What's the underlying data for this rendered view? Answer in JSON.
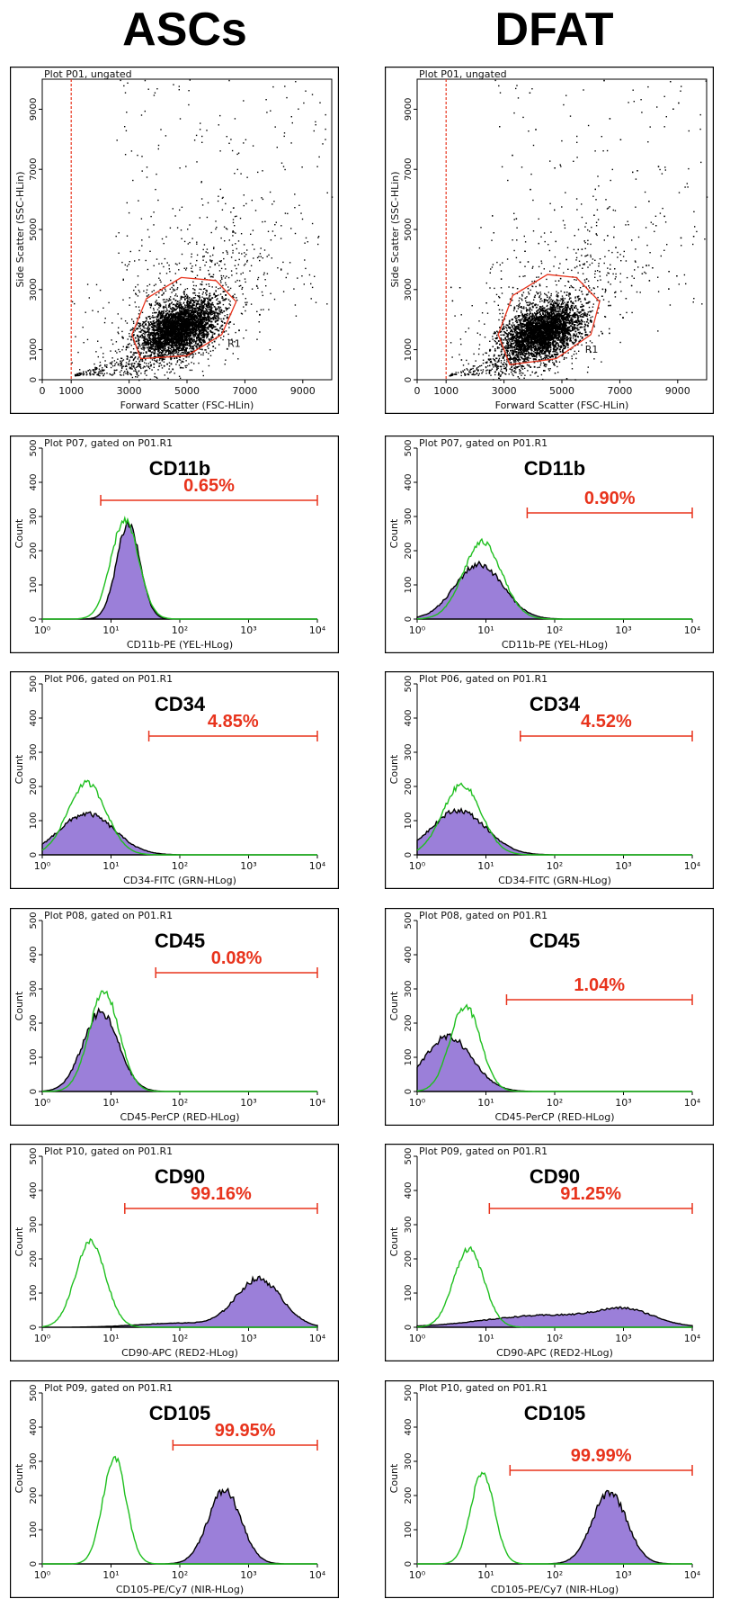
{
  "columns": [
    "ASCs",
    "DFAT"
  ],
  "colors": {
    "gate": "#e8331c",
    "sample_fill": "#9b7fd9",
    "sample_line": "#000000",
    "control_line": "#1fbf1f",
    "dots": "#000000"
  },
  "scatter": [
    {
      "plot_label": "Plot P01, ungated",
      "xlabel": "Forward Scatter (FSC-HLin)",
      "ylabel": "Side Scatter (SSC-HLin)",
      "gate_label": "R1",
      "x_ticks": [
        "0",
        "1000",
        "3000",
        "5000",
        "7000",
        "9000"
      ],
      "y_ticks": [
        "0",
        "1000",
        "3000",
        "5000",
        "7000",
        "9000"
      ]
    },
    {
      "plot_label": "Plot P01, ungated",
      "xlabel": "Forward Scatter (FSC-HLin)",
      "ylabel": "Side Scatter (SSC-HLin)",
      "gate_label": "R1",
      "x_ticks": [
        "0",
        "1000",
        "3000",
        "5000",
        "7000",
        "9000"
      ],
      "y_ticks": [
        "0",
        "1000",
        "3000",
        "5000",
        "7000",
        "9000"
      ]
    }
  ],
  "chart_data": {
    "type": "histogram",
    "x_ticks": [
      "10⁰",
      "10¹",
      "10²",
      "10³",
      "10⁴"
    ],
    "y_ticks": [
      "0",
      "100",
      "200",
      "300",
      "400",
      "500"
    ],
    "ylabel": "Count",
    "rows": [
      {
        "marker": "CD11b",
        "panels": [
          {
            "plot_label": "Plot P07, gated on P01.R1",
            "xlabel": "CD11b-PE (YEL-HLog)",
            "percent": "0.65%",
            "gate": [
              0.85,
              4
            ],
            "sample": [
              {
                "mu": 1.25,
                "sigma": 0.17,
                "peak": 280
              }
            ],
            "control": [
              {
                "mu": 1.2,
                "sigma": 0.2,
                "peak": 290
              }
            ]
          },
          {
            "plot_label": "Plot P07, gated on P01.R1",
            "xlabel": "CD11b-PE (YEL-HLog)",
            "percent": "0.90%",
            "gate": [
              1.6,
              4
            ],
            "sample": [
              {
                "mu": 0.9,
                "sigma": 0.35,
                "peak": 160
              }
            ],
            "control": [
              {
                "mu": 0.95,
                "sigma": 0.28,
                "peak": 225
              }
            ]
          }
        ]
      },
      {
        "marker": "CD34",
        "panels": [
          {
            "plot_label": "Plot P06, gated on P01.R1",
            "xlabel": "CD34-FITC (GRN-HLog)",
            "percent": "4.85%",
            "gate": [
              1.55,
              4
            ],
            "sample": [
              {
                "mu": 0.65,
                "sigma": 0.4,
                "peak": 120
              }
            ],
            "control": [
              {
                "mu": 0.65,
                "sigma": 0.28,
                "peak": 210
              }
            ]
          },
          {
            "plot_label": "Plot P06, gated on P01.R1",
            "xlabel": "CD34-FITC (GRN-HLog)",
            "percent": "4.52%",
            "gate": [
              1.5,
              4
            ],
            "sample": [
              {
                "mu": 0.6,
                "sigma": 0.4,
                "peak": 130
              }
            ],
            "control": [
              {
                "mu": 0.65,
                "sigma": 0.28,
                "peak": 205
              }
            ]
          }
        ]
      },
      {
        "marker": "CD45",
        "panels": [
          {
            "plot_label": "Plot P08, gated on P01.R1",
            "xlabel": "CD45-PerCP (RED-HLog)",
            "percent": "0.08%",
            "gate": [
              1.65,
              4
            ],
            "sample": [
              {
                "mu": 0.85,
                "sigma": 0.26,
                "peak": 230
              }
            ],
            "control": [
              {
                "mu": 0.9,
                "sigma": 0.22,
                "peak": 290
              }
            ]
          },
          {
            "plot_label": "Plot P08, gated on P01.R1",
            "xlabel": "CD45-PerCP (RED-HLog)",
            "percent": "1.04%",
            "gate": [
              1.3,
              4
            ],
            "sample": [
              {
                "mu": 0.45,
                "sigma": 0.35,
                "peak": 160
              }
            ],
            "control": [
              {
                "mu": 0.7,
                "sigma": 0.22,
                "peak": 250
              }
            ]
          }
        ]
      },
      {
        "marker": "CD90",
        "panels": [
          {
            "plot_label": "Plot P10, gated on P01.R1",
            "xlabel": "CD90-APC (RED2-HLog)",
            "percent": "99.16%",
            "gate": [
              1.2,
              4
            ],
            "sample": [
              {
                "mu": 3.15,
                "sigma": 0.33,
                "peak": 140
              },
              {
                "mu": 2.0,
                "sigma": 0.6,
                "peak": 12
              }
            ],
            "control": [
              {
                "mu": 0.7,
                "sigma": 0.22,
                "peak": 250
              }
            ]
          },
          {
            "plot_label": "Plot P09, gated on P01.R1",
            "xlabel": "CD90-APC (RED2-HLog)",
            "percent": "91.25%",
            "gate": [
              1.05,
              4
            ],
            "sample": [
              {
                "mu": 1.9,
                "sigma": 0.9,
                "peak": 35
              },
              {
                "mu": 3.05,
                "sigma": 0.4,
                "peak": 40
              }
            ],
            "control": [
              {
                "mu": 0.75,
                "sigma": 0.22,
                "peak": 230
              }
            ]
          }
        ]
      },
      {
        "marker": "CD105",
        "panels": [
          {
            "plot_label": "Plot P09, gated on P01.R1",
            "xlabel": "CD105-PE/Cy7 (NIR-HLog)",
            "percent": "99.95%",
            "gate": [
              1.9,
              4
            ],
            "sample": [
              {
                "mu": 2.65,
                "sigma": 0.24,
                "peak": 215
              }
            ],
            "control": [
              {
                "mu": 1.05,
                "sigma": 0.17,
                "peak": 310
              }
            ]
          },
          {
            "plot_label": "Plot P10, gated on P01.R1",
            "xlabel": "CD105-PE/Cy7 (NIR-HLog)",
            "percent": "99.99%",
            "gate": [
              1.35,
              4
            ],
            "sample": [
              {
                "mu": 2.8,
                "sigma": 0.25,
                "peak": 210
              }
            ],
            "control": [
              {
                "mu": 0.95,
                "sigma": 0.17,
                "peak": 270
              }
            ]
          }
        ]
      }
    ]
  }
}
